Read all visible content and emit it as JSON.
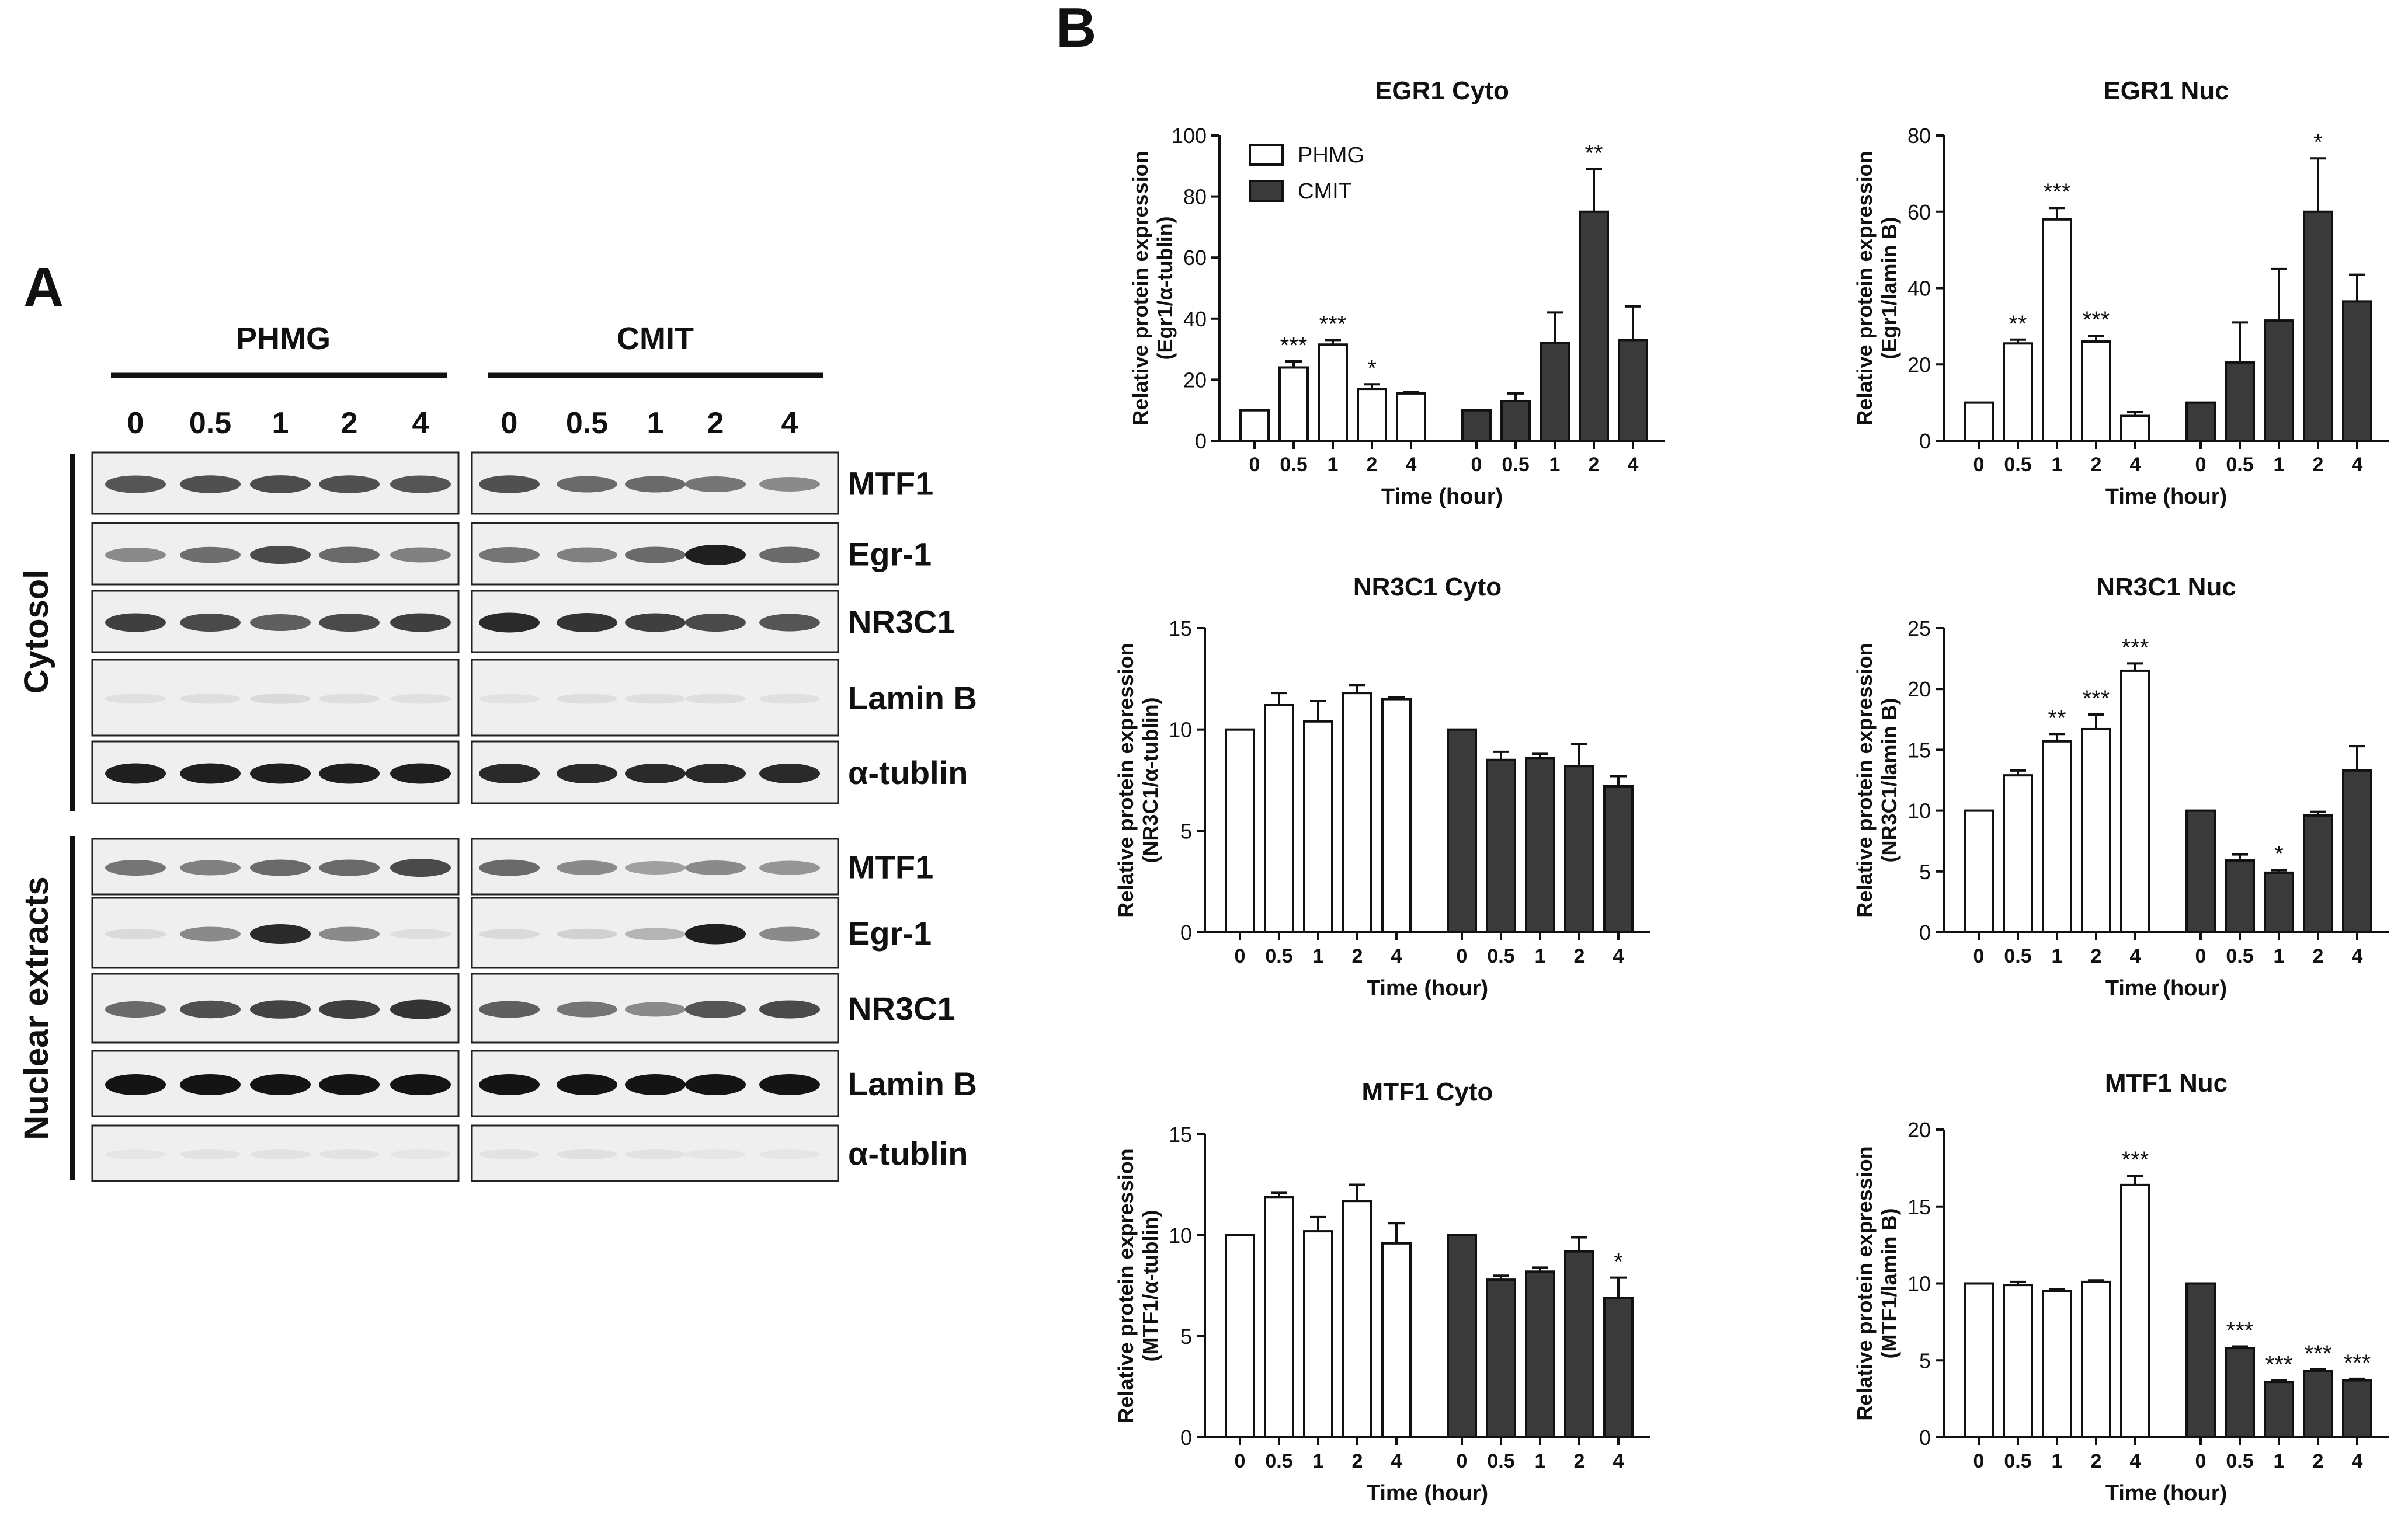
{
  "panel_a": {
    "label": "A",
    "groups": [
      "PHMG",
      "CMIT"
    ],
    "times": [
      "0",
      "0.5",
      "1",
      "2",
      "4"
    ],
    "sections": [
      "Cytosol",
      "Nuclear extracts"
    ],
    "cyto_rows": [
      "MTF1",
      "Egr-1",
      "NR3C1",
      "Lamin B",
      "α-tublin"
    ],
    "nuc_rows": [
      "MTF1",
      "Egr-1",
      "NR3C1",
      "Lamin B",
      "α-tublin"
    ],
    "band_intensity": {
      "cyto": [
        [
          0.7,
          0.72,
          0.74,
          0.72,
          0.7,
          0.72,
          0.6,
          0.6,
          0.55,
          0.45
        ],
        [
          0.45,
          0.58,
          0.75,
          0.6,
          0.5,
          0.55,
          0.5,
          0.6,
          0.95,
          0.6
        ],
        [
          0.8,
          0.75,
          0.65,
          0.75,
          0.8,
          0.9,
          0.85,
          0.8,
          0.75,
          0.7
        ],
        [
          0.05,
          0.06,
          0.08,
          0.06,
          0.05,
          0.04,
          0.06,
          0.06,
          0.06,
          0.05
        ],
        [
          0.95,
          0.95,
          0.95,
          0.95,
          0.95,
          0.9,
          0.9,
          0.9,
          0.9,
          0.9
        ]
      ],
      "nuc": [
        [
          0.55,
          0.5,
          0.6,
          0.6,
          0.75,
          0.6,
          0.45,
          0.35,
          0.45,
          0.4
        ],
        [
          0.08,
          0.45,
          0.9,
          0.45,
          0.06,
          0.08,
          0.12,
          0.25,
          0.95,
          0.45
        ],
        [
          0.6,
          0.72,
          0.78,
          0.8,
          0.85,
          0.65,
          0.55,
          0.45,
          0.7,
          0.75
        ],
        [
          1.0,
          1.0,
          1.0,
          1.0,
          1.0,
          1.0,
          1.0,
          1.0,
          1.0,
          1.0
        ],
        [
          0.03,
          0.04,
          0.04,
          0.04,
          0.03,
          0.04,
          0.05,
          0.04,
          0.03,
          0.03
        ]
      ]
    }
  },
  "panel_b": {
    "label": "B",
    "legend": {
      "series": [
        "PHMG",
        "CMIT"
      ]
    }
  },
  "chart_data": [
    {
      "id": "egr1_cyto",
      "type": "bar",
      "title": "EGR1 Cyto",
      "ylabel_line1": "Relative protein expression",
      "ylabel_line2": "(Egr1/α-tublin)",
      "xlabel": "Time (hour)",
      "ylim": [
        0,
        100
      ],
      "yticks": [
        "0",
        "20",
        "40",
        "60",
        "80",
        "100"
      ],
      "categories": [
        "0",
        "0.5",
        "1",
        "2",
        "4"
      ],
      "legend": true,
      "series": [
        {
          "name": "PHMG",
          "values": [
            10,
            24,
            31.5,
            17,
            15.5
          ],
          "errors": [
            0,
            2,
            1.5,
            1.5,
            0.5
          ],
          "sig": [
            "",
            "***",
            "***",
            "*",
            ""
          ]
        },
        {
          "name": "CMIT",
          "values": [
            10,
            13,
            32,
            75,
            33
          ],
          "errors": [
            0,
            2.5,
            10,
            14,
            11
          ],
          "sig": [
            "",
            "",
            "",
            "**",
            ""
          ]
        }
      ]
    },
    {
      "id": "egr1_nuc",
      "type": "bar",
      "title": "EGR1 Nuc",
      "ylabel_line1": "Relative protein expression",
      "ylabel_line2": "(Egr1/lamin B)",
      "xlabel": "Time (hour)",
      "ylim": [
        0,
        80
      ],
      "yticks": [
        "0",
        "20",
        "40",
        "60",
        "80"
      ],
      "categories": [
        "0",
        "0.5",
        "1",
        "2",
        "4"
      ],
      "legend": false,
      "series": [
        {
          "name": "PHMG",
          "values": [
            10,
            25.5,
            58,
            26,
            6.5
          ],
          "errors": [
            0,
            1,
            3,
            1.5,
            1
          ],
          "sig": [
            "",
            "**",
            "***",
            "***",
            ""
          ]
        },
        {
          "name": "CMIT",
          "values": [
            10,
            20.5,
            31.5,
            60,
            36.5
          ],
          "errors": [
            0,
            10.5,
            13.5,
            14,
            7
          ],
          "sig": [
            "",
            "",
            "",
            "*",
            ""
          ]
        }
      ]
    },
    {
      "id": "nr3c1_cyto",
      "type": "bar",
      "title": "NR3C1 Cyto",
      "ylabel_line1": "Relative protein expression",
      "ylabel_line2": "(NR3C1/α-tublin)",
      "xlabel": "Time (hour)",
      "ylim": [
        0,
        15
      ],
      "yticks": [
        "0",
        "5",
        "10",
        "15"
      ],
      "categories": [
        "0",
        "0.5",
        "1",
        "2",
        "4"
      ],
      "legend": false,
      "series": [
        {
          "name": "PHMG",
          "values": [
            10,
            11.2,
            10.4,
            11.8,
            11.5
          ],
          "errors": [
            0,
            0.6,
            1,
            0.4,
            0.1
          ],
          "sig": [
            "",
            "",
            "",
            "",
            ""
          ]
        },
        {
          "name": "CMIT",
          "values": [
            10,
            8.5,
            8.6,
            8.2,
            7.2
          ],
          "errors": [
            0,
            0.4,
            0.2,
            1.1,
            0.5
          ],
          "sig": [
            "",
            "",
            "",
            "",
            ""
          ]
        }
      ]
    },
    {
      "id": "nr3c1_nuc",
      "type": "bar",
      "title": "NR3C1 Nuc",
      "ylabel_line1": "Relative protein expression",
      "ylabel_line2": "(NR3C1/lamin B)",
      "xlabel": "Time (hour)",
      "ylim": [
        0,
        25
      ],
      "yticks": [
        "0",
        "5",
        "10",
        "15",
        "20",
        "25"
      ],
      "categories": [
        "0",
        "0.5",
        "1",
        "2",
        "4"
      ],
      "legend": false,
      "series": [
        {
          "name": "PHMG",
          "values": [
            10,
            12.9,
            15.7,
            16.7,
            21.5
          ],
          "errors": [
            0,
            0.4,
            0.6,
            1.2,
            0.6
          ],
          "sig": [
            "",
            "",
            "**",
            "***",
            "***"
          ]
        },
        {
          "name": "CMIT",
          "values": [
            10,
            5.9,
            4.9,
            9.6,
            13.3
          ],
          "errors": [
            0,
            0.5,
            0.2,
            0.3,
            2
          ],
          "sig": [
            "",
            "",
            "*",
            "",
            ""
          ]
        }
      ]
    },
    {
      "id": "mtf1_cyto",
      "type": "bar",
      "title": "MTF1 Cyto",
      "ylabel_line1": "Relative protein expression",
      "ylabel_line2": "(MTF1/α-tublin)",
      "xlabel": "Time (hour)",
      "ylim": [
        0,
        15
      ],
      "yticks": [
        "0",
        "5",
        "10",
        "15"
      ],
      "categories": [
        "0",
        "0.5",
        "1",
        "2",
        "4"
      ],
      "legend": false,
      "series": [
        {
          "name": "PHMG",
          "values": [
            10,
            11.9,
            10.2,
            11.7,
            9.6
          ],
          "errors": [
            0,
            0.2,
            0.7,
            0.8,
            1
          ],
          "sig": [
            "",
            "",
            "",
            "",
            ""
          ]
        },
        {
          "name": "CMIT",
          "values": [
            10,
            7.8,
            8.2,
            9.2,
            6.9
          ],
          "errors": [
            0,
            0.2,
            0.2,
            0.7,
            1
          ],
          "sig": [
            "",
            "",
            "",
            "",
            "*"
          ]
        }
      ]
    },
    {
      "id": "mtf1_nuc",
      "type": "bar",
      "title": "MTF1 Nuc",
      "ylabel_line1": "Relative protein expression",
      "ylabel_line2": "(MTF1/lamin B)",
      "xlabel": "Time (hour)",
      "ylim": [
        0,
        20
      ],
      "yticks": [
        "0",
        "5",
        "10",
        "15",
        "20"
      ],
      "categories": [
        "0",
        "0.5",
        "1",
        "2",
        "4"
      ],
      "legend": false,
      "series": [
        {
          "name": "PHMG",
          "values": [
            10,
            9.9,
            9.5,
            10.1,
            16.4
          ],
          "errors": [
            0,
            0.2,
            0.1,
            0.1,
            0.6
          ],
          "sig": [
            "",
            "",
            "",
            "",
            "***"
          ]
        },
        {
          "name": "CMIT",
          "values": [
            10,
            5.8,
            3.6,
            4.3,
            3.7
          ],
          "errors": [
            0,
            0.1,
            0.1,
            0.1,
            0.1
          ],
          "sig": [
            "",
            "***",
            "***",
            "***",
            "***"
          ]
        }
      ]
    }
  ]
}
